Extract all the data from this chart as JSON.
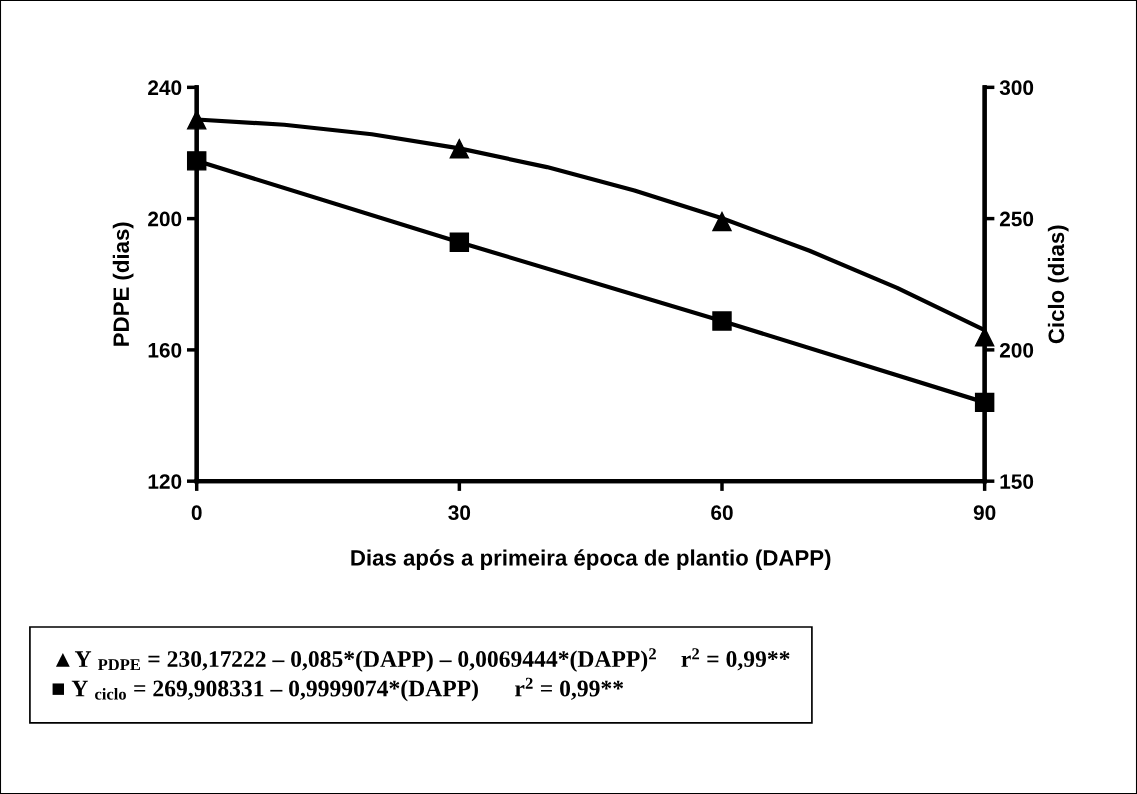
{
  "chart_data": {
    "type": "line",
    "xlabel": "Dias após a primeira época de plantio (DAPP)",
    "ylabel": "PDPE (dias)",
    "y2label": "Ciclo (dias)",
    "x": [
      0,
      30,
      60,
      90
    ],
    "series": [
      {
        "type": "scatter",
        "color": "#000000",
        "values": [
          230.1,
          221.3,
          199.1,
          164
        ],
        "marker": "triangle"
      },
      {
        "type": "line",
        "color": "#000000",
        "x": [
          0,
          10,
          20,
          30,
          40,
          50,
          60,
          70,
          80,
          90
        ],
        "values": [
          230.2,
          228.6,
          225.7,
          221.4,
          215.7,
          208.6,
          200.1,
          190.2,
          178.9,
          166
        ],
        "marker": "none"
      },
      {
        "color": "#000000",
        "values": [
          272,
          241,
          211,
          180
        ],
        "marker": "square",
        "axis": "y2"
      }
    ],
    "xlim": [
      0,
      90
    ],
    "xticks": [
      0,
      30,
      60,
      90
    ],
    "ylim": [
      120,
      240
    ],
    "yticks": [
      120,
      160,
      200,
      240
    ],
    "y2lim": [
      150,
      300
    ],
    "y2ticks": [
      150,
      200,
      250,
      300
    ],
    "grid": false,
    "legend": false,
    "line_style": "solid",
    "annotations": [
      "▲Y $_{PDPE}$ = 230,17222 – 0,085*(DAPP) – 0,0069444*(DAPP)$^{2}$    r$^{2}$ = 0,99**",
      "■ Y $_{ciclo}$ = 269,908331 – 0,9999074*(DAPP)      r$^{2}$ = 0,99**"
    ]
  }
}
